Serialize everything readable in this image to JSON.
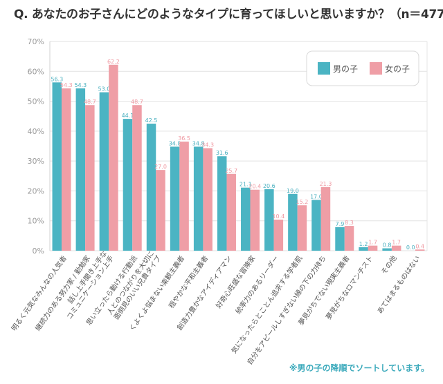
{
  "title": "Q. あなたのお子さんにどのようなタイプに育ってほしいと思いますか？（n＝477）",
  "note": "※男の子の降順でソートしています。",
  "colors": {
    "boy": "#4BB4C3",
    "girl": "#EF9EA6",
    "boy_text": "#46AEBE",
    "girl_text": "#EF98A1",
    "grid": "#e2e2e2"
  },
  "chart_data": {
    "type": "bar",
    "title": "Q. あなたのお子さんにどのようなタイプに育ってほしいと思いますか？（n＝477）",
    "xlabel": "",
    "ylabel": "",
    "ylim": [
      0,
      70
    ],
    "yticks": [
      0,
      10,
      20,
      30,
      40,
      50,
      60,
      70
    ],
    "ytick_labels": [
      "0%",
      "10%",
      "20%",
      "30%",
      "40%",
      "50%",
      "60%",
      "70%"
    ],
    "grid": true,
    "legend_position": "top-right",
    "categories": [
      [
        "明るく元気なみんなの人気者"
      ],
      [
        "継続力のある努力家 / 勤勉家"
      ],
      [
        "話し上手聞き上手な",
        "コミュニケーション上手"
      ],
      [
        "思い立ったら動ける行動派"
      ],
      [
        "人とのつながりを大切に",
        "面倒見のいい兄貴タイプ"
      ],
      [
        "くよくよ悩まない楽観主義者"
      ],
      [
        "穏やかな平和主義者"
      ],
      [
        "創造力豊かなアイディアマン"
      ],
      [
        "好奇心旺盛な冒険家"
      ],
      [
        "統率力のあるリーダー"
      ],
      [
        "気になったらとことん追求する学者肌"
      ],
      [
        "自分をアピールしすぎない縁の下の力持ち"
      ],
      [
        "夢見がちでない現実主義者"
      ],
      [
        "夢見がちなロマンチスト"
      ],
      [
        "その他"
      ],
      [
        "あてはまるものはない"
      ]
    ],
    "series": [
      {
        "name": "男の子",
        "values": [
          56.3,
          54.3,
          53.0,
          44.1,
          42.5,
          34.8,
          34.8,
          31.6,
          21.1,
          20.6,
          19.0,
          17.0,
          7.9,
          1.2,
          0.8,
          0.0
        ]
      },
      {
        "name": "女の子",
        "values": [
          54.3,
          48.7,
          62.2,
          48.7,
          27.0,
          36.5,
          34.3,
          25.7,
          20.4,
          10.4,
          15.2,
          21.3,
          8.3,
          1.7,
          1.7,
          0.4
        ]
      }
    ]
  }
}
